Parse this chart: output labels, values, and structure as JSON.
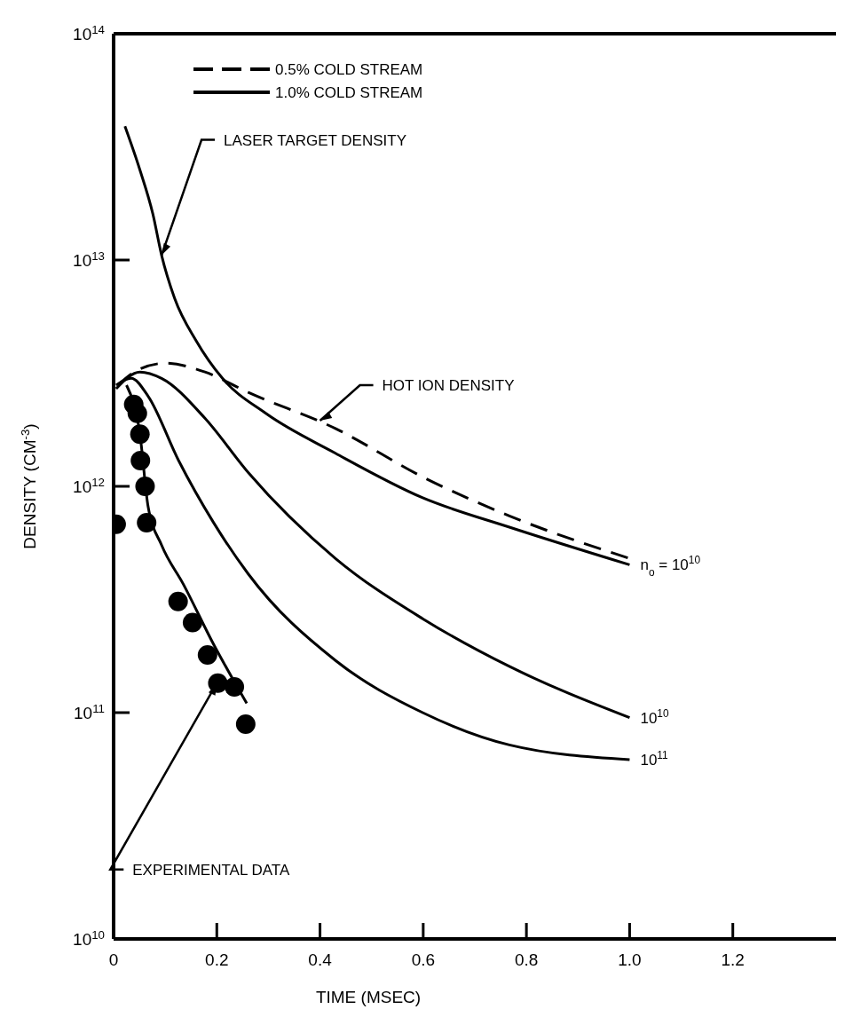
{
  "chart_data": {
    "type": "line",
    "xlabel": "TIME (MSEC)",
    "ylabel": "DENSITY (CM$^{-3}$)",
    "log": "y",
    "grid": false,
    "legend": "top left",
    "marker": "none",
    "xlim": [
      0,
      1.4
    ],
    "xticks": [
      0,
      0.2,
      0.4,
      0.6,
      0.8,
      {
        "value": 1,
        "label": "1.0"
      },
      {
        "value": 1.2,
        "label": "1.2"
      }
    ],
    "ylim": [
      10000000000.0,
      100000000000000.0
    ],
    "yticks": [
      {
        "value": 10000000000.0,
        "label": "10$^{10}$"
      },
      {
        "value": 100000000000.0,
        "label": "10$^{11}$"
      },
      {
        "value": 1000000000000.0,
        "label": "10$^{12}$"
      },
      {
        "value": 10000000000000.0,
        "label": "10$^{13}$"
      },
      {
        "value": 100000000000000.0,
        "label": "10$^{14}$"
      }
    ],
    "series": [
      {
        "name": "0.5% COLD STREAM",
        "color": "#000000",
        "line_style": "dashed",
        "x": [
          0.008,
          0.051,
          0.101,
          0.177,
          0.261,
          0.43,
          0.599,
          0.767,
          1.0
        ],
        "values": [
          2800000000000.0,
          3300000000000.0,
          3500000000000.0,
          3200000000000.0,
          2600000000000.0,
          1800000000000.0,
          1100000000000.0,
          740000000000.0,
          480000000000.0
        ]
      },
      {
        "name": "1.0% COLD STREAM",
        "color": "#000000",
        "line_style": "solid",
        "x": [
          0.022,
          0.051,
          0.076,
          0.093,
          0.118,
          0.16,
          0.211,
          0.295,
          0.43,
          0.599,
          0.767,
          1.0
        ],
        "values": [
          39000000000000.0,
          25000000000000.0,
          16000000000000.0,
          10500000000000.0,
          6800000000000.0,
          4400000000000.0,
          3000000000000.0,
          2100000000000.0,
          1400000000000.0,
          890000000000.0,
          660000000000.0,
          450000000000.0
        ]
      },
      {
        "color": "#000000",
        "line_style": "solid",
        "x": [
          0.005,
          0.051,
          0.093,
          0.177,
          0.261,
          0.43,
          0.599,
          0.767,
          1.0
        ],
        "values": [
          2700000000000.0,
          3200000000000.0,
          3000000000000.0,
          2000000000000.0,
          1150000000000.0,
          480000000000.0,
          260000000000.0,
          160000000000.0,
          95000000000.0
        ]
      },
      {
        "color": "#000000",
        "line_style": "solid",
        "x": [
          0.005,
          0.034,
          0.067,
          0.126,
          0.194,
          0.261,
          0.43,
          0.599,
          0.767,
          1.0
        ],
        "values": [
          2800000000000.0,
          3000000000000.0,
          2500000000000.0,
          1300000000000.0,
          690000000000.0,
          410000000000.0,
          170000000000.0,
          100000000000.0,
          72000000000.0,
          62000000000.0
        ]
      },
      {
        "type": "scatter",
        "color": "#000000",
        "marker": "circle",
        "x": [
          0.005,
          0.039,
          0.046,
          0.051,
          0.052,
          0.061,
          0.064,
          0.125,
          0.153,
          0.182,
          0.202,
          0.234,
          0.256
        ],
        "values": [
          680000000000.0,
          2300000000000.0,
          2100000000000.0,
          1700000000000.0,
          1300000000000.0,
          1000000000000.0,
          690000000000.0,
          310000000000.0,
          250000000000.0,
          180000000000.0,
          135000000000.0,
          130000000000.0,
          89000000000.0
        ]
      },
      {
        "type": "line",
        "color": "#000000",
        "line_style": "solid",
        "x": [
          0.025,
          0.051,
          0.067,
          0.093,
          0.135,
          0.194,
          0.258
        ],
        "values": [
          2800000000000.0,
          1700000000000.0,
          810000000000.0,
          550000000000.0,
          370000000000.0,
          200000000000.0,
          110000000000.0
        ]
      }
    ],
    "annotations": [
      {
        "text": "LASER TARGET DENSITY",
        "x": 0.093,
        "y": 10500000000000.0
      },
      {
        "text": "HOT ION DENSITY",
        "x": 0.4,
        "y": 1950000000000.0
      },
      {
        "text": "EXPERIMENTAL DATA",
        "x": 0.2,
        "y": 135000000000.0
      },
      {
        "text": "n$_{o}$ = 10$^{10}$",
        "x": 1.0,
        "y": 450000000000.0
      },
      {
        "text": "10$^{10}$",
        "x": 1.0,
        "y": 95000000000.0
      },
      {
        "text": "10$^{11}$",
        "x": 1.0,
        "y": 62000000000.0
      }
    ]
  }
}
